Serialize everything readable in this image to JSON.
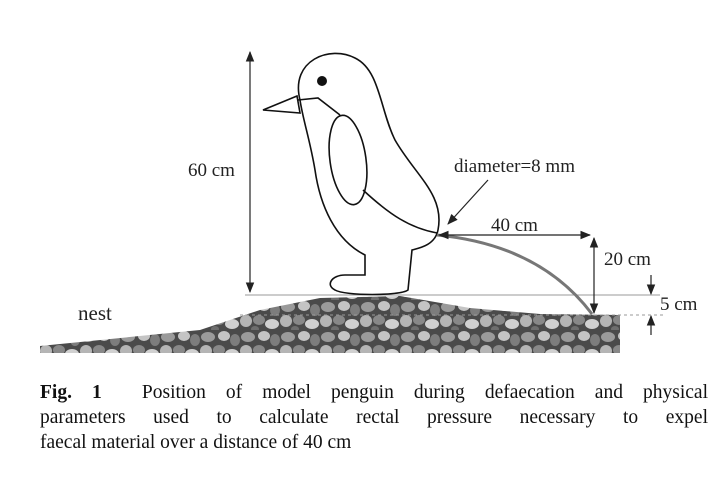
{
  "figure": {
    "labels": {
      "height": "60 cm",
      "nest": "nest",
      "diameter": "diameter=8 mm",
      "distance": "40 cm",
      "drop": "20 cm",
      "ground_offset": "5 cm"
    },
    "caption": {
      "fig_label": "Fig. 1",
      "lines": [
        "Position of model penguin during defaecation and physical",
        "parameters used to calculate rectal pressure necessary to expel",
        "faecal material over a distance of 40 cm"
      ]
    }
  }
}
